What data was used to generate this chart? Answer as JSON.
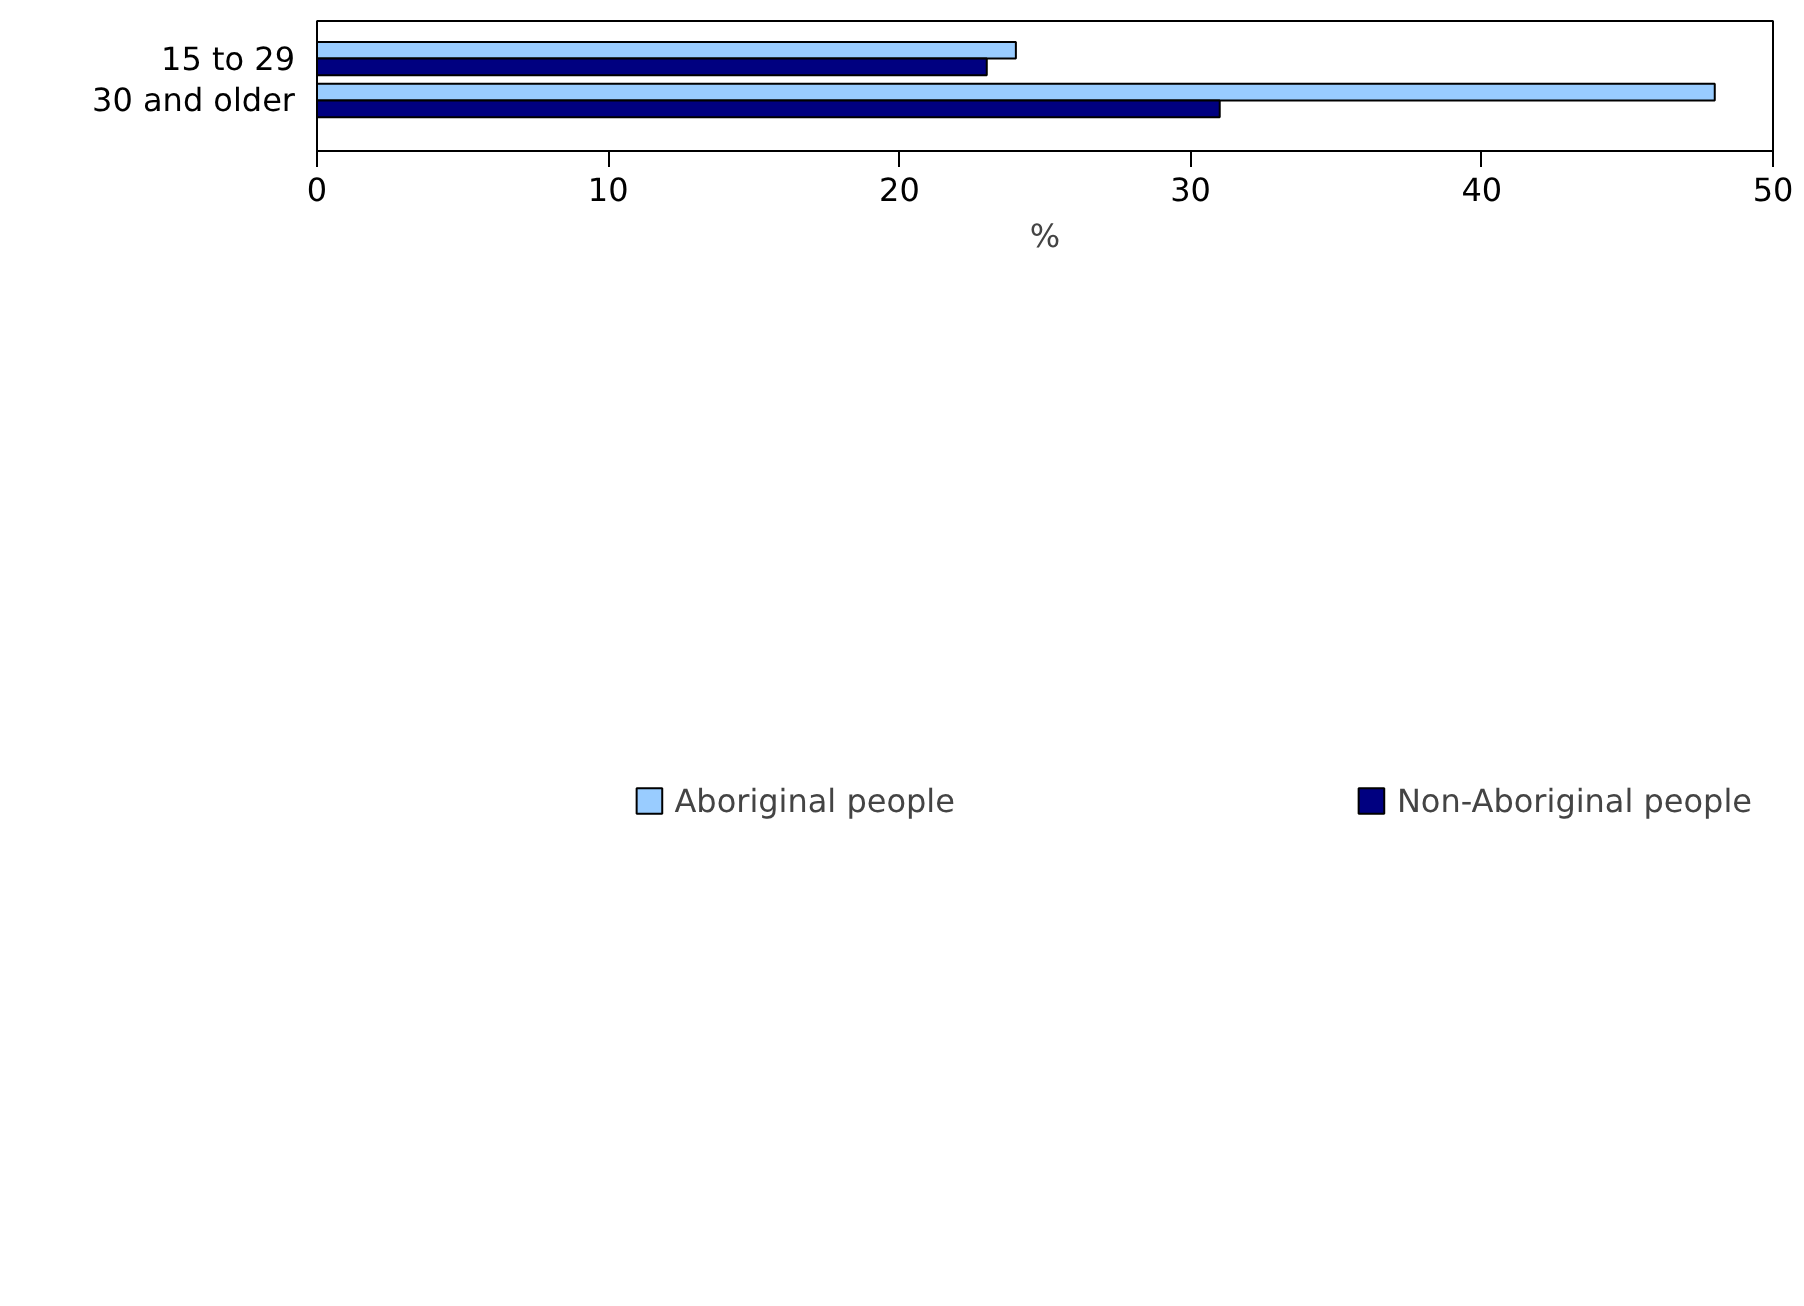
{
  "chart_data": {
    "type": "bar",
    "orientation": "horizontal",
    "xlabel": "%",
    "categories": [
      "15 to 29",
      "30 and older"
    ],
    "series": [
      {
        "name": "Aboriginal people",
        "color": "#99ccff",
        "values": [
          24,
          48
        ]
      },
      {
        "name": "Non-Aboriginal people",
        "color": "#000080",
        "values": [
          23,
          31
        ]
      }
    ],
    "xlim": [
      0,
      50
    ],
    "xticks": [
      0,
      10,
      20,
      30,
      40,
      50
    ],
    "grid": false,
    "legend": "bottom"
  }
}
